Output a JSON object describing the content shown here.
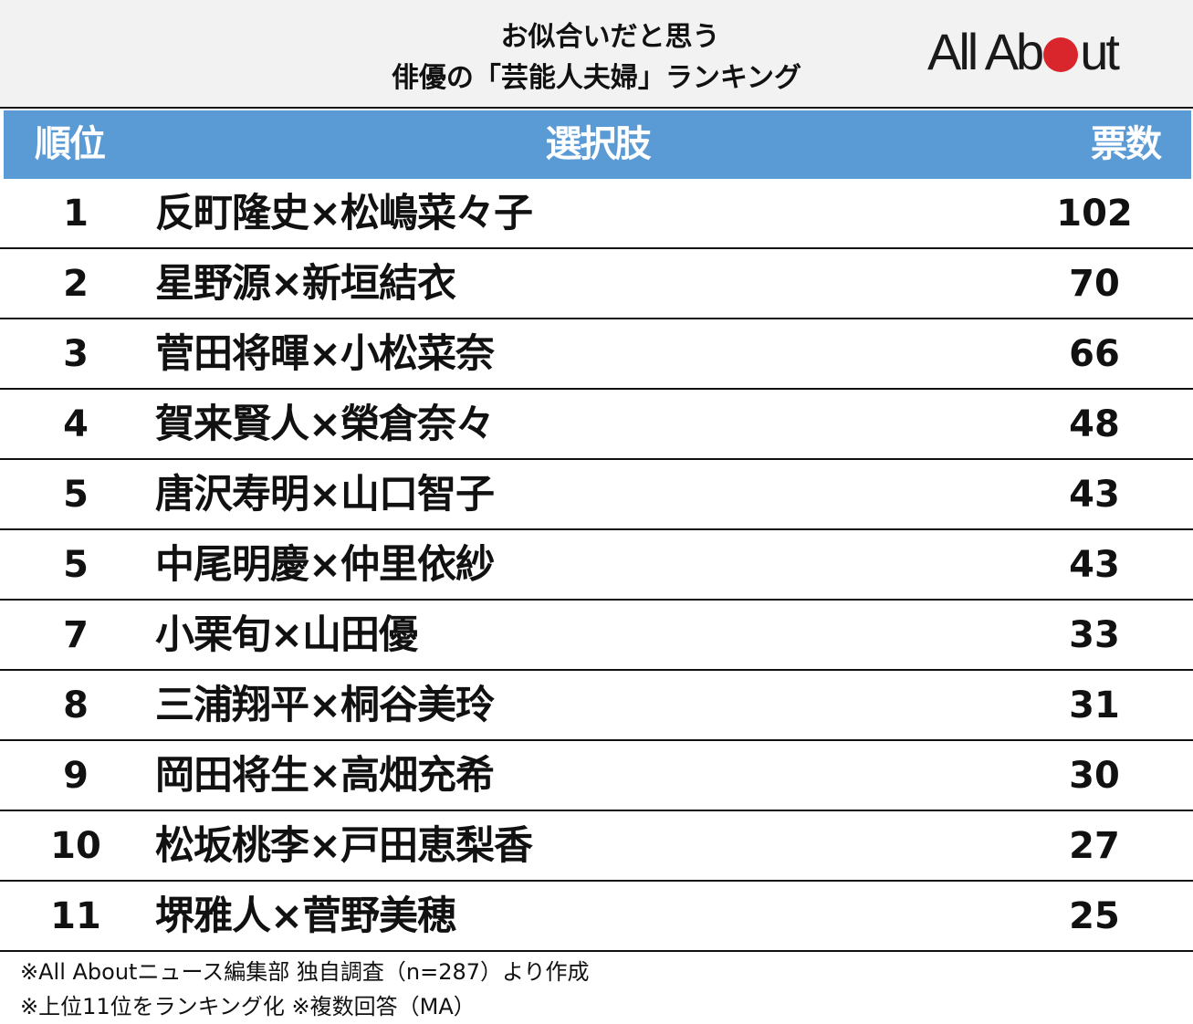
{
  "header": {
    "title_line1": "お似合いだと思う",
    "title_line2": "俳優の「芸能人夫婦」ランキング",
    "logo": {
      "text_before_dot": "All Ab",
      "text_after_dot": "ut",
      "dot_color": "#d9262c"
    }
  },
  "table": {
    "header_bg": "#5b9bd5",
    "columns": {
      "rank": "順位",
      "choice": "選択肢",
      "votes": "票数"
    },
    "rows": [
      {
        "rank": "1",
        "name": "反町隆史×松嶋菜々子",
        "votes": "102"
      },
      {
        "rank": "2",
        "name": "星野源×新垣結衣",
        "votes": "70"
      },
      {
        "rank": "3",
        "name": "菅田将暉×小松菜奈",
        "votes": "66"
      },
      {
        "rank": "4",
        "name": "賀来賢人×榮倉奈々",
        "votes": "48"
      },
      {
        "rank": "5",
        "name": "唐沢寿明×山口智子",
        "votes": "43"
      },
      {
        "rank": "5",
        "name": "中尾明慶×仲里依紗",
        "votes": "43"
      },
      {
        "rank": "7",
        "name": "小栗旬×山田優",
        "votes": "33"
      },
      {
        "rank": "8",
        "name": "三浦翔平×桐谷美玲",
        "votes": "31"
      },
      {
        "rank": "9",
        "name": "岡田将生×高畑充希",
        "votes": "30"
      },
      {
        "rank": "10",
        "name": "松坂桃李×戸田恵梨香",
        "votes": "27"
      },
      {
        "rank": "11",
        "name": "堺雅人×菅野美穂",
        "votes": "25"
      }
    ]
  },
  "footer": {
    "note1": "※All Aboutニュース編集部 独自調査（n=287）より作成",
    "note2": "※上位11位をランキング化 ※複数回答（MA）"
  },
  "chart_data": {
    "type": "table",
    "title": "お似合いだと思う俳優の「芸能人夫婦」ランキング",
    "columns": [
      "順位",
      "選択肢",
      "票数"
    ],
    "categories": [
      "反町隆史×松嶋菜々子",
      "星野源×新垣結衣",
      "菅田将暉×小松菜奈",
      "賀来賢人×榮倉奈々",
      "唐沢寿明×山口智子",
      "中尾明慶×仲里依紗",
      "小栗旬×山田優",
      "三浦翔平×桐谷美玲",
      "岡田将生×高畑充希",
      "松坂桃李×戸田恵梨香",
      "堺雅人×菅野美穂"
    ],
    "ranks": [
      1,
      2,
      3,
      4,
      5,
      5,
      7,
      8,
      9,
      10,
      11
    ],
    "values": [
      102,
      70,
      66,
      48,
      43,
      43,
      33,
      31,
      30,
      27,
      25
    ],
    "xlabel": "選択肢",
    "ylabel": "票数",
    "notes": [
      "※All Aboutニュース編集部 独自調査（n=287）より作成",
      "※上位11位をランキング化 ※複数回答（MA）"
    ]
  }
}
